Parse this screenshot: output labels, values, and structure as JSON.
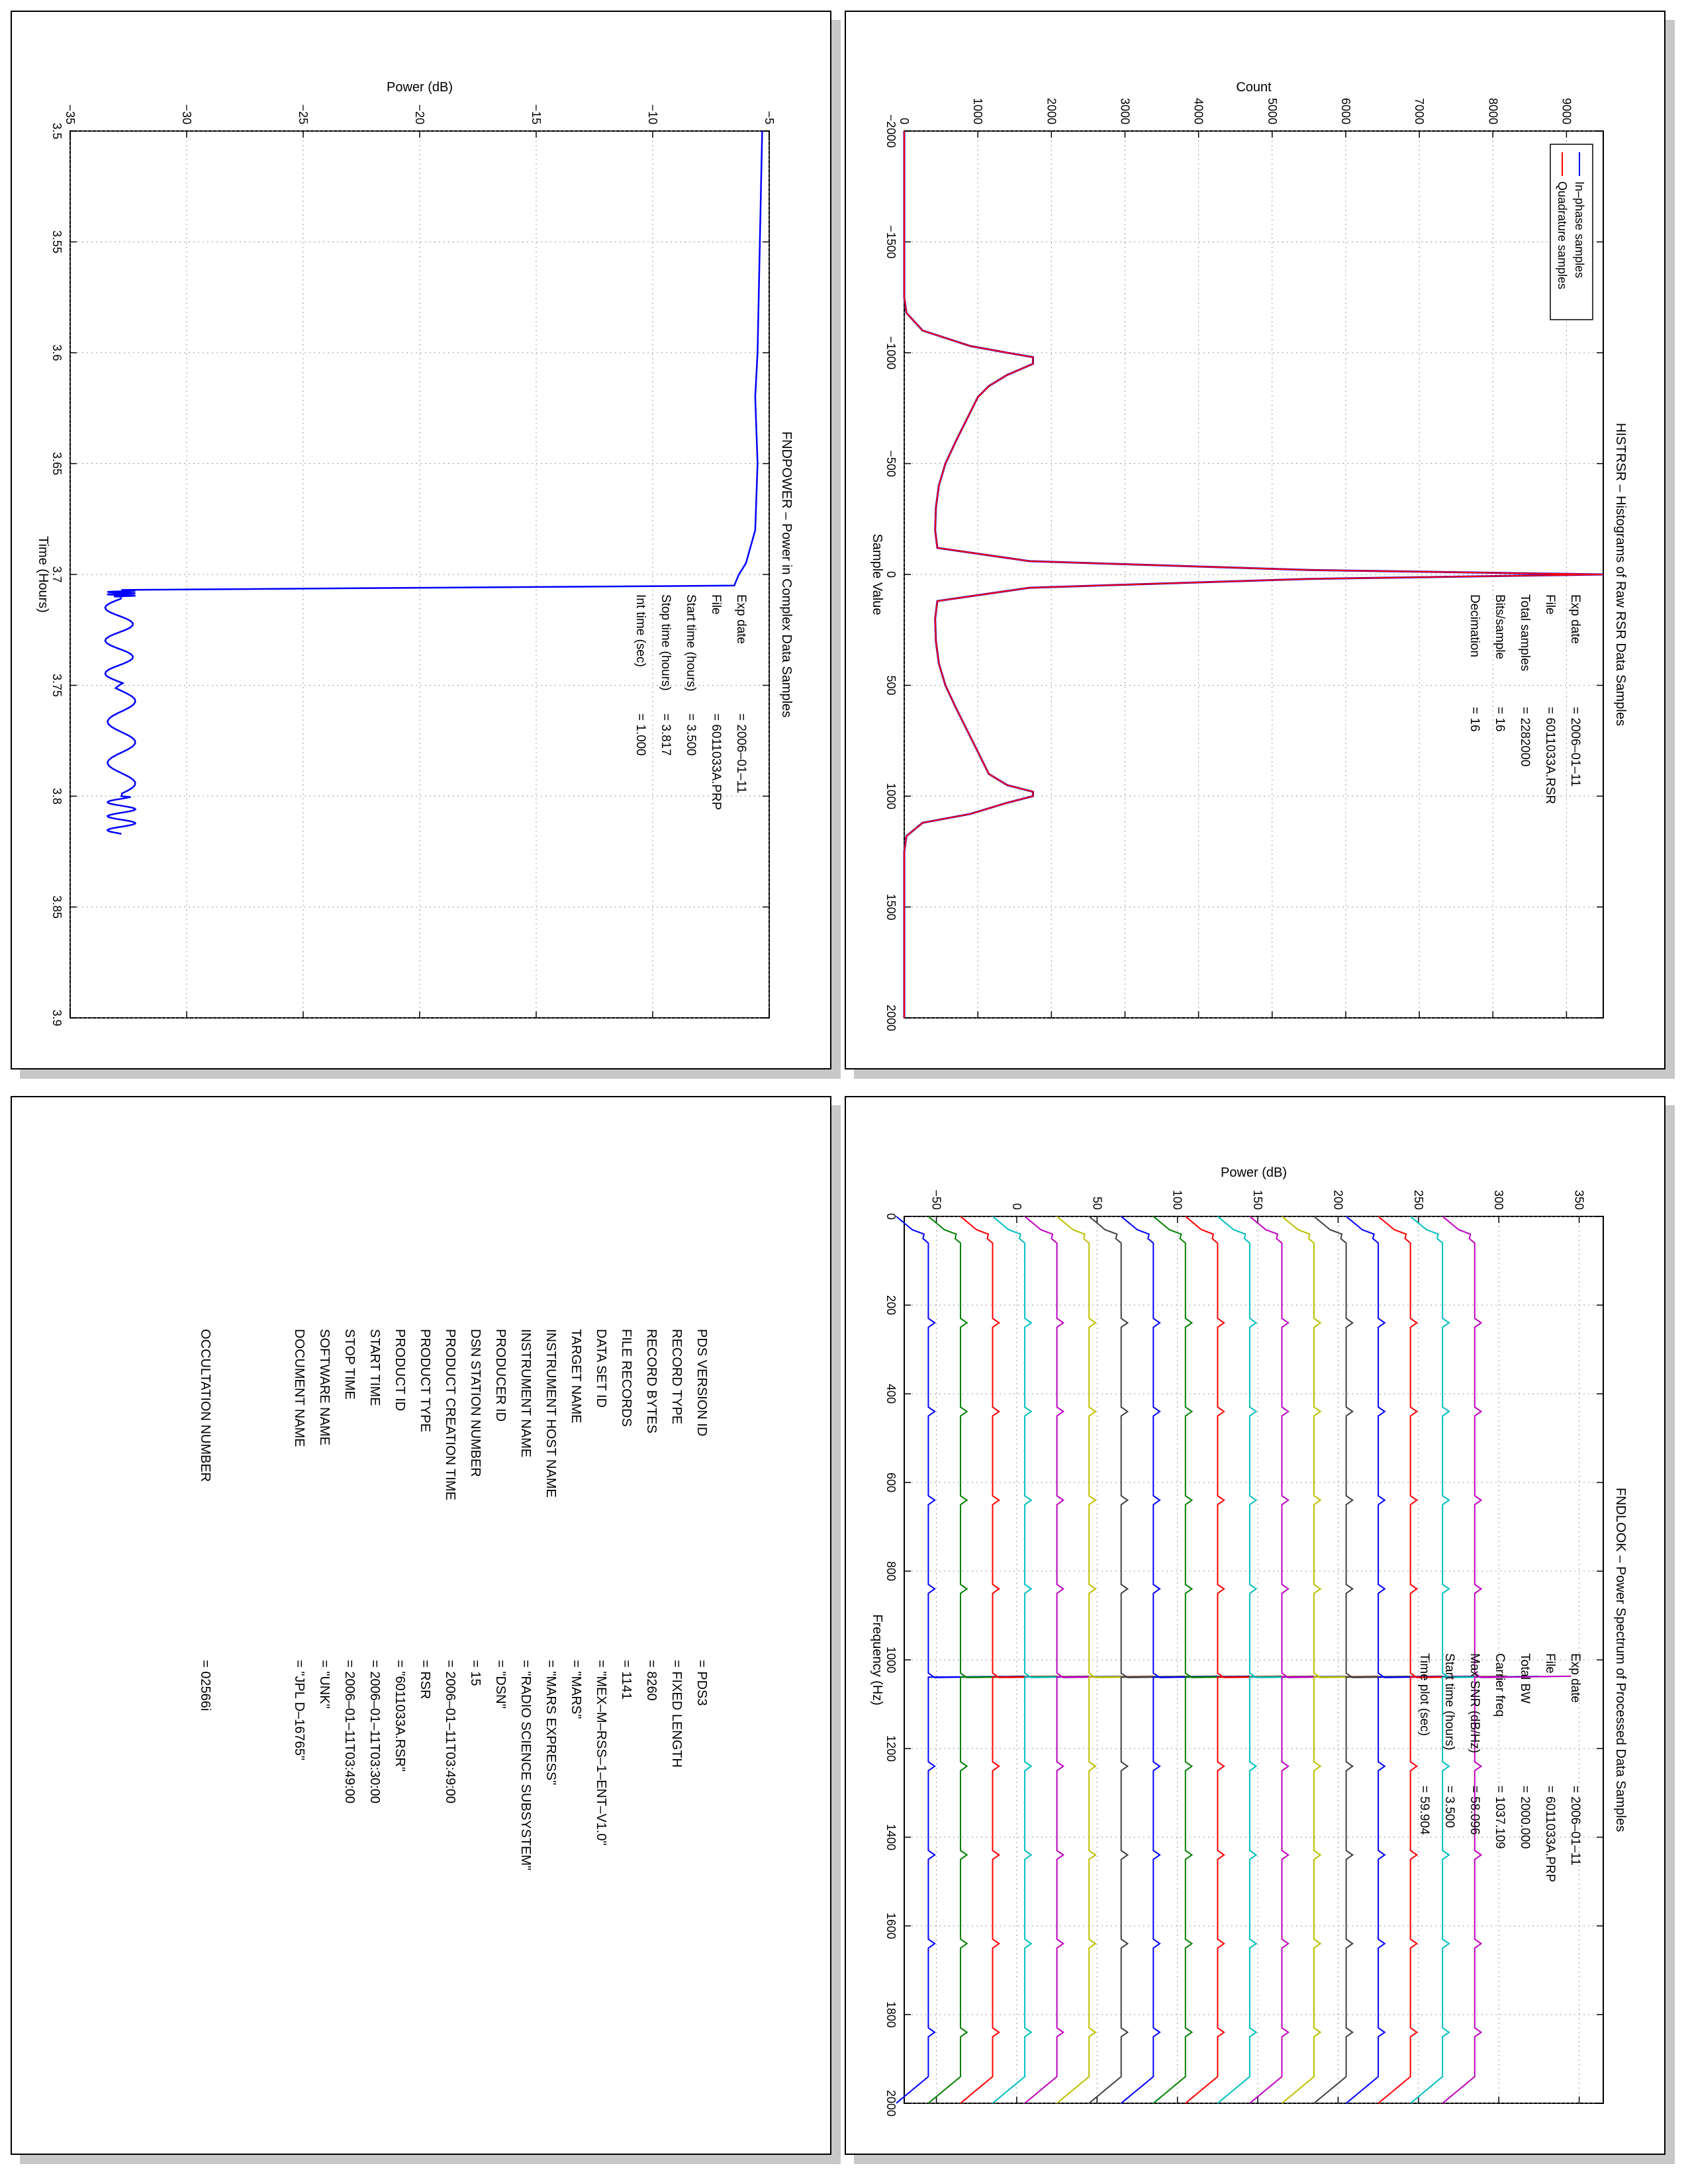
{
  "chart_data": [
    {
      "type": "line",
      "panel": "top-right",
      "title": "HISTRSR – Histograms of Raw RSR Data Samples",
      "xlabel": "Sample Value",
      "ylabel": "Count",
      "xlim": [
        -2000,
        2000
      ],
      "ylim": [
        0,
        9500
      ],
      "xticks": [
        "−2000",
        "−1500",
        "−1000",
        "−500",
        "0",
        "500",
        "1000",
        "1500",
        "2000"
      ],
      "yticks": [
        "0",
        "1000",
        "2000",
        "3000",
        "4000",
        "5000",
        "6000",
        "7000",
        "8000",
        "9000"
      ],
      "grid": true,
      "legend_position": "top-left",
      "series": [
        {
          "name": "In–phase samples",
          "color": "#0000ff",
          "x": [
            -2000,
            -1250,
            -1180,
            -1100,
            -1030,
            -1000,
            -980,
            -950,
            -900,
            -850,
            -800,
            -700,
            -600,
            -500,
            -400,
            -300,
            -200,
            -120,
            -60,
            -20,
            0,
            20,
            60,
            120,
            200,
            300,
            400,
            500,
            600,
            700,
            800,
            900,
            950,
            980,
            1000,
            1030,
            1080,
            1120,
            1180,
            1250,
            2000
          ],
          "y": [
            0,
            0,
            30,
            250,
            900,
            1400,
            1750,
            1750,
            1400,
            1150,
            1000,
            850,
            700,
            560,
            470,
            430,
            420,
            450,
            1700,
            5500,
            9500,
            5500,
            1700,
            450,
            420,
            430,
            470,
            560,
            700,
            850,
            1000,
            1150,
            1400,
            1750,
            1750,
            1400,
            900,
            250,
            30,
            0,
            0
          ]
        },
        {
          "name": "Quadrature samples",
          "color": "#ff0000",
          "x": [
            -2000,
            -1250,
            -1180,
            -1100,
            -1030,
            -1000,
            -980,
            -950,
            -900,
            -850,
            -800,
            -700,
            -600,
            -500,
            -400,
            -300,
            -200,
            -120,
            -60,
            -20,
            0,
            20,
            60,
            120,
            200,
            300,
            400,
            500,
            600,
            700,
            800,
            900,
            950,
            980,
            1000,
            1030,
            1080,
            1120,
            1180,
            1250,
            2000
          ],
          "y": [
            0,
            0,
            30,
            250,
            900,
            1400,
            1750,
            1750,
            1400,
            1150,
            1000,
            850,
            700,
            560,
            470,
            430,
            420,
            450,
            1700,
            5500,
            9500,
            5500,
            1700,
            450,
            420,
            430,
            470,
            560,
            700,
            850,
            1000,
            1150,
            1400,
            1750,
            1750,
            1400,
            900,
            250,
            30,
            0,
            0
          ]
        }
      ],
      "annotations": [
        {
          "label": "Exp date",
          "value": "=  2006–01–11"
        },
        {
          "label": "File",
          "value": "=  6011033A.RSR"
        },
        {
          "label": "Total samples",
          "value": "=    2282000"
        },
        {
          "label": "Bits/sample",
          "value": "=        16"
        },
        {
          "label": "Decimation",
          "value": "=        16"
        }
      ]
    },
    {
      "type": "line",
      "panel": "top-left",
      "title": "FNDPOWER – Power in Complex Data Samples",
      "xlabel": "Time (Hours)",
      "ylabel": "Power (dB)",
      "xlim": [
        3.5,
        3.9
      ],
      "ylim": [
        -35,
        -5
      ],
      "xticks": [
        "3.5",
        "3.55",
        "3.6",
        "3.65",
        "3.7",
        "3.75",
        "3.8",
        "3.85",
        "3.9"
      ],
      "yticks": [
        "−35",
        "−30",
        "−25",
        "−20",
        "−15",
        "−10",
        "−5"
      ],
      "grid": true,
      "series": [
        {
          "color": "#0000ff",
          "x": [
            3.5,
            3.55,
            3.6,
            3.62,
            3.65,
            3.68,
            3.695,
            3.7,
            3.705,
            3.706,
            3.707,
            3.71,
            3.75,
            3.8,
            3.817
          ],
          "y": [
            -5.3,
            -5.4,
            -5.5,
            -5.6,
            -5.5,
            -5.6,
            -6.0,
            -6.3,
            -6.5,
            -20.0,
            -32.8,
            -32.8,
            -32.9,
            -32.8,
            -32.8
          ]
        }
      ],
      "annotations": [
        {
          "label": "Exp date",
          "value": "=  2006–01–11"
        },
        {
          "label": "File",
          "value": "=  6011033A.PRP"
        },
        {
          "label": "Start time (hours)",
          "value": "=   3.500"
        },
        {
          "label": "Stop time (hours)",
          "value": "=   3.817"
        },
        {
          "label": "Int time (sec)",
          "value": "=     1.000"
        }
      ]
    },
    {
      "type": "line",
      "panel": "bottom-right",
      "title": "FNDLOOK – Power Spectrum of Processed Data Samples",
      "xlabel": "Frequency (Hz)",
      "ylabel": "Power (dB)",
      "xlim": [
        0,
        2000
      ],
      "ylim": [
        -70,
        365
      ],
      "xticks": [
        "0",
        "200",
        "400",
        "600",
        "800",
        "1000",
        "1200",
        "1400",
        "1600",
        "1800",
        "2000"
      ],
      "yticks": [
        "−50",
        "0",
        "50",
        "100",
        "150",
        "200",
        "250",
        "300",
        "350"
      ],
      "grid": true,
      "offsets": [
        -55,
        -35,
        -15,
        5,
        25,
        45,
        65,
        85,
        105,
        125,
        145,
        165,
        185,
        205,
        225,
        245,
        265,
        285
      ],
      "colors": [
        "#0000ff",
        "#008000",
        "#ff0000",
        "#00bfbf",
        "#bf00bf",
        "#bfbf00",
        "#404040",
        "#0000ff",
        "#008000",
        "#ff0000",
        "#00bfbf",
        "#bf00bf",
        "#bfbf00",
        "#404040",
        "#0000ff",
        "#ff0000",
        "#00bfbf",
        "#bf00bf"
      ],
      "carrier_hz": 1037,
      "annotations": [
        {
          "label": "Exp date",
          "value": "=  2006–01–11"
        },
        {
          "label": "File",
          "value": "=  6011033A.PRP"
        },
        {
          "label": "Total BW",
          "value": "=     2000.000"
        },
        {
          "label": "Carrier freq",
          "value": "=    1037.109"
        },
        {
          "label": "Max SNR (dB/Hz)",
          "value": "=    58.096"
        },
        {
          "label": "Start time (hours)",
          "value": "=    3.500"
        },
        {
          "label": "Time plot (sec)",
          "value": "=     59.904"
        }
      ]
    }
  ],
  "pds_label": {
    "rows": [
      {
        "key": "PDS VERSION ID",
        "value": "=  PDS3"
      },
      {
        "key": "RECORD TYPE",
        "value": "=  FIXED LENGTH"
      },
      {
        "key": "RECORD BYTES",
        "value": "=  8260"
      },
      {
        "key": "FILE RECORDS",
        "value": "=  1141"
      },
      {
        "key": "DATA SET ID",
        "value": "=  \"MEX–M–RSS–1–ENT–V1.0\""
      },
      {
        "key": "TARGET NAME",
        "value": "=  \"MARS\""
      },
      {
        "key": "INSTRUMENT HOST NAME",
        "value": "=  \"MARS EXPRESS\""
      },
      {
        "key": "INSTRUMENT NAME",
        "value": "=  \"RADIO SCIENCE SUBSYSTEM\""
      },
      {
        "key": "PRODUCER ID",
        "value": "=  \"DSN\""
      },
      {
        "key": "DSN STATION NUMBER",
        "value": "=  15"
      },
      {
        "key": "PRODUCT CREATION TIME",
        "value": "=  2006–01–11T03:49:00"
      },
      {
        "key": "PRODUCT TYPE",
        "value": "=  RSR"
      },
      {
        "key": "PRODUCT ID",
        "value": "=  \"6011033A.RSR\""
      },
      {
        "key": "START TIME",
        "value": "=  2006–01–11T03:30:00"
      },
      {
        "key": "STOP TIME",
        "value": "=  2006–01–11T03:49:00"
      },
      {
        "key": "SOFTWARE NAME",
        "value": "=  \"UNK\""
      },
      {
        "key": "DOCUMENT NAME",
        "value": "=  \"JPL D–16765\""
      }
    ],
    "occultation": {
      "key": "OCCULTATION NUMBER",
      "value": "=  02566i"
    }
  }
}
